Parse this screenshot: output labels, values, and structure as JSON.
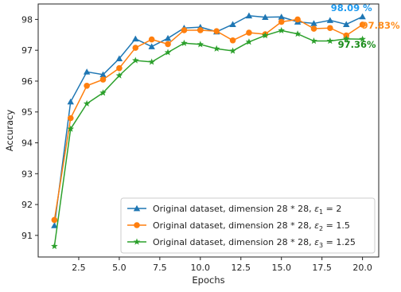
{
  "chart_data": {
    "type": "line",
    "xlabel": "Epochs",
    "ylabel": "Accuracy",
    "xlim": [
      0.0,
      21.0
    ],
    "ylim": [
      90.3,
      98.5
    ],
    "xticks": [
      2.5,
      5.0,
      7.5,
      10.0,
      12.5,
      15.0,
      17.5,
      20.0
    ],
    "xtick_labels": [
      "2.5",
      "5.0",
      "7.5",
      "10.0",
      "12.5",
      "15.0",
      "17.5",
      "20.0"
    ],
    "yticks": [
      91,
      92,
      93,
      94,
      95,
      96,
      97,
      98
    ],
    "ytick_labels": [
      "91",
      "92",
      "93",
      "94",
      "95",
      "96",
      "97",
      "98"
    ],
    "grid": false,
    "legend_position": "lower-right",
    "x": [
      1,
      2,
      3,
      4,
      5,
      6,
      7,
      8,
      9,
      10,
      11,
      12,
      13,
      14,
      15,
      16,
      17,
      18,
      19,
      20
    ],
    "series": [
      {
        "name": "Original dataset, dimension 28 * 28, ε1 = 2",
        "legend_parts": [
          "Original dataset, dimension 28 * 28, ",
          "ε",
          "1",
          " = 2"
        ],
        "color": "#1f77b4",
        "marker": "triangle",
        "values": [
          91.32,
          95.33,
          96.3,
          96.21,
          96.73,
          97.37,
          97.12,
          97.39,
          97.72,
          97.75,
          97.6,
          97.84,
          98.12,
          98.07,
          98.08,
          97.92,
          97.87,
          97.97,
          97.84,
          98.09
        ],
        "end_label": "98.09 %",
        "end_label_color": "#1f9bf0"
      },
      {
        "name": "Original dataset, dimension 28 * 28, ε2 = 1.5",
        "legend_parts": [
          "Original dataset, dimension 28 * 28, ",
          "ε",
          "2",
          " = 1.5"
        ],
        "color": "#ff7f0e",
        "marker": "circle",
        "values": [
          91.5,
          94.8,
          95.85,
          96.05,
          96.42,
          97.08,
          97.35,
          97.2,
          97.65,
          97.65,
          97.62,
          97.32,
          97.57,
          97.52,
          97.92,
          98.0,
          97.7,
          97.72,
          97.48,
          97.83
        ],
        "end_label": "97.83%",
        "end_label_color": "#ff8c1a"
      },
      {
        "name": "Original dataset, dimension 28 * 28, ε3 = 1.25",
        "legend_parts": [
          "Original dataset, dimension 28 * 28, ",
          "ε",
          "3",
          " = 1.25"
        ],
        "color": "#2ca02c",
        "marker": "star",
        "values": [
          90.65,
          94.45,
          95.27,
          95.62,
          96.18,
          96.67,
          96.62,
          96.93,
          97.23,
          97.19,
          97.05,
          96.98,
          97.27,
          97.48,
          97.64,
          97.53,
          97.3,
          97.3,
          97.37,
          97.36
        ],
        "end_label": "97.36%",
        "end_label_color": "#1a8c1a"
      }
    ]
  }
}
